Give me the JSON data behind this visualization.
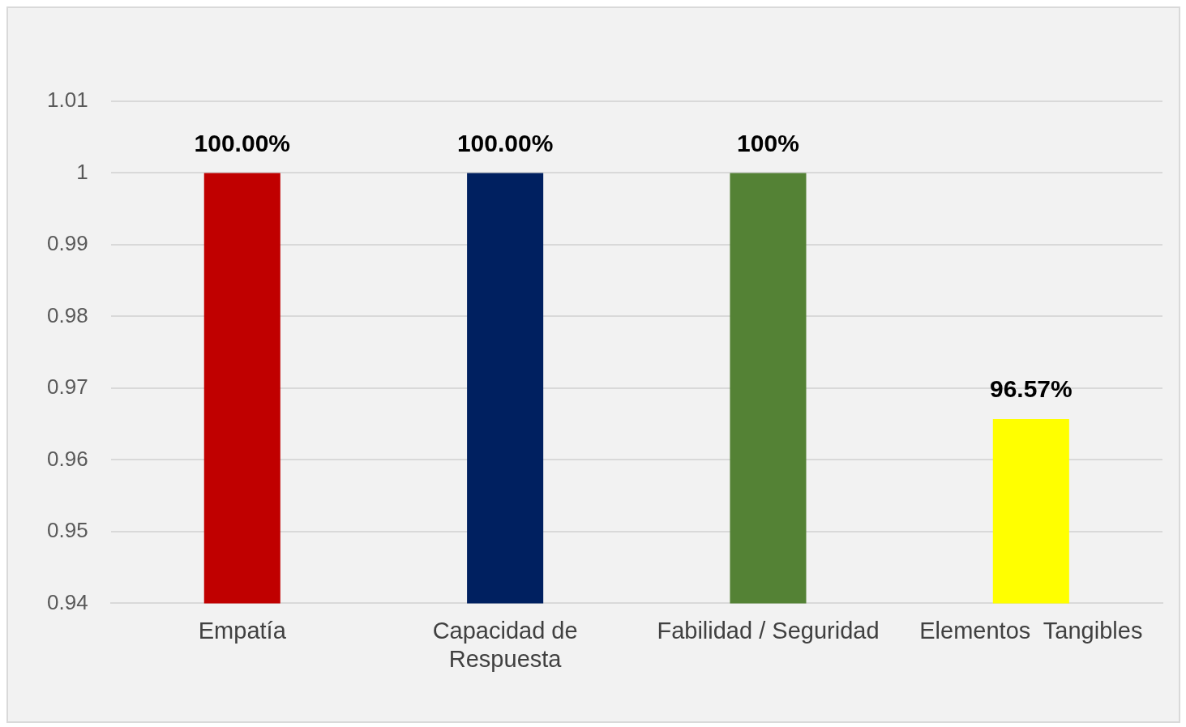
{
  "chart_data": {
    "type": "bar",
    "categories": [
      "Empatía",
      "Capacidad de Respuesta",
      "Fabilidad / Seguridad",
      "Elementos  Tangibles"
    ],
    "values": [
      1,
      1,
      1,
      0.9657
    ],
    "colors": [
      "#c00000",
      "#002060",
      "#548235",
      "#ffff00"
    ],
    "value_labels": [
      "100.00%",
      "100.00%",
      "100%",
      "96.57%"
    ],
    "ylim": [
      0.94,
      1.01
    ],
    "yticks": [
      0.94,
      0.95,
      0.96,
      0.97,
      0.98,
      0.99,
      1,
      1.01
    ],
    "grid": "y",
    "legend": false
  }
}
